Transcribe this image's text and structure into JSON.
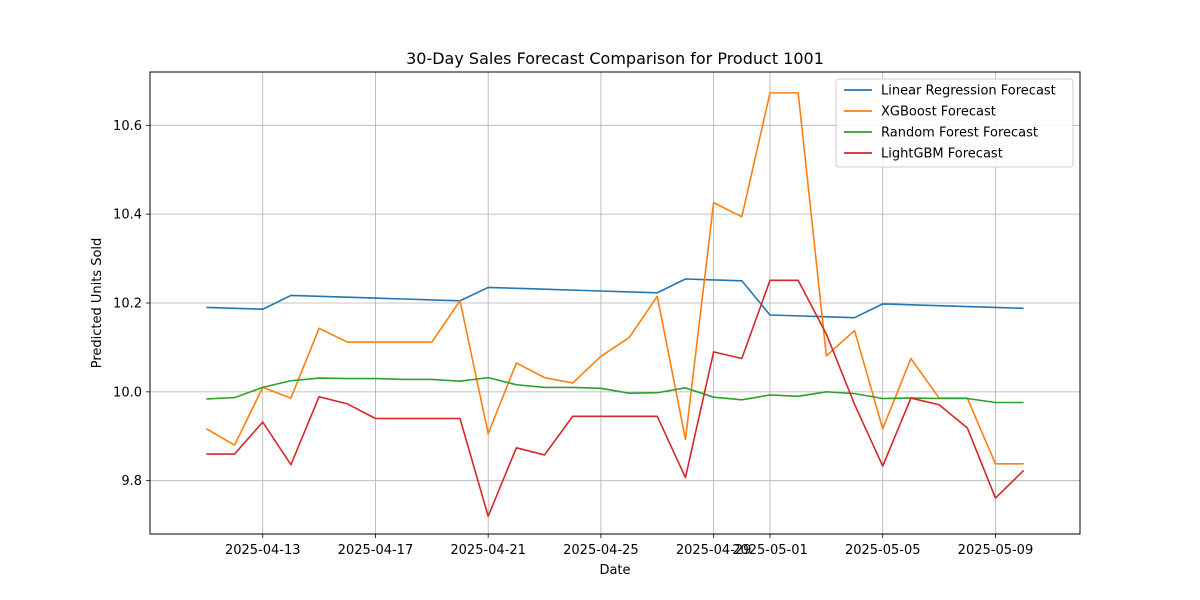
{
  "chart_data": {
    "type": "line",
    "title": "30-Day Sales Forecast Comparison for Product 1001",
    "xlabel": "Date",
    "ylabel": "Predicted Units Sold",
    "x_start": "2025-04-11",
    "x_end": "2025-05-10",
    "xlim": [
      "2025-04-09",
      "2025-05-12"
    ],
    "ylim": [
      9.68,
      10.72
    ],
    "x_ticks": [
      "2025-04-13",
      "2025-04-17",
      "2025-04-21",
      "2025-04-25",
      "2025-04-29",
      "2025-05-01",
      "2025-05-05",
      "2025-05-09"
    ],
    "y_ticks": [
      "9.8",
      "10.0",
      "10.2",
      "10.4",
      "10.6"
    ],
    "grid": true,
    "legend_position": "top-right",
    "series": [
      {
        "name": "Linear Regression Forecast",
        "color": "#1f77b4",
        "values": [
          10.19,
          10.188,
          10.186,
          10.217,
          10.215,
          10.213,
          10.211,
          10.209,
          10.207,
          10.205,
          10.235,
          10.233,
          10.231,
          10.229,
          10.227,
          10.225,
          10.223,
          10.254,
          10.252,
          10.25,
          10.173,
          10.171,
          10.169,
          10.167,
          10.198,
          10.196,
          10.194,
          10.192,
          10.19,
          10.188
        ]
      },
      {
        "name": "XGBoost Forecast",
        "color": "#ff7f0e",
        "values": [
          9.917,
          9.88,
          10.01,
          9.986,
          10.143,
          10.112,
          10.112,
          10.112,
          10.112,
          10.205,
          9.906,
          10.065,
          10.032,
          10.02,
          10.08,
          10.122,
          10.215,
          9.893,
          10.426,
          10.394,
          10.673,
          10.673,
          10.081,
          10.138,
          9.917,
          10.075,
          9.986,
          9.986,
          9.838,
          9.838
        ]
      },
      {
        "name": "Random Forest Forecast",
        "color": "#2ca02c",
        "values": [
          9.984,
          9.987,
          10.01,
          10.025,
          10.031,
          10.03,
          10.03,
          10.028,
          10.028,
          10.024,
          10.032,
          10.016,
          10.01,
          10.01,
          10.008,
          9.997,
          9.998,
          10.009,
          9.988,
          9.982,
          9.993,
          9.99,
          10.0,
          9.996,
          9.985,
          9.986,
          9.985,
          9.985,
          9.976,
          9.976
        ]
      },
      {
        "name": "LightGBM Forecast",
        "color": "#d62728",
        "values": [
          9.86,
          9.86,
          9.932,
          9.836,
          9.989,
          9.973,
          9.94,
          9.94,
          9.94,
          9.94,
          9.72,
          9.874,
          9.858,
          9.945,
          9.945,
          9.945,
          9.945,
          9.807,
          10.09,
          10.075,
          10.251,
          10.251,
          10.13,
          9.972,
          9.833,
          9.986,
          9.971,
          9.919,
          9.761,
          9.823
        ]
      }
    ]
  }
}
